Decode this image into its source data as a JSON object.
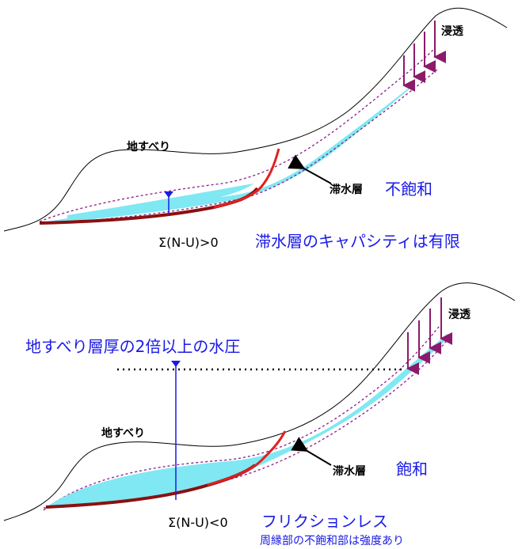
{
  "panel_top": {
    "label_infiltration": "浸透",
    "label_landslide": "地すべり",
    "label_aquifer": "滞水層",
    "label_state": "不飽和",
    "label_formula": "Σ(N-U)>0",
    "label_note": "滞水層のキャパシティは有限"
  },
  "panel_bottom": {
    "label_infiltration": "浸透",
    "label_pressure": "地すべり層厚の2倍以上の水圧",
    "label_landslide": "地すべり",
    "label_aquifer": "滞水層",
    "label_state": "飽和",
    "label_formula": "Σ(N-U)<0",
    "label_note": "フリクションレス",
    "label_subnote": "周縁部の不飽和部は強度あり"
  },
  "colors": {
    "water": "#7fe8f2",
    "slip_surface": "#e02020",
    "arrow": "#8b1a6b",
    "dashed": "#8b1a8b",
    "text_blue": "#1a1ae6"
  }
}
